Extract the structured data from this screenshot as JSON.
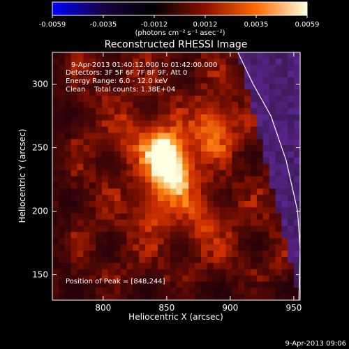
{
  "chart_data": {
    "type": "heatmap",
    "title": "Reconstructed RHESSI Image",
    "xlabel": "Heliocentric X (arcsec)",
    "ylabel": "Heliocentric Y (arcsec)",
    "xlim": [
      760,
      955
    ],
    "ylim": [
      130,
      325
    ],
    "xticks": [
      800,
      850,
      900,
      950
    ],
    "yticks": [
      150,
      200,
      250,
      300
    ],
    "colorbar": {
      "range": [
        -0.0059,
        0.0059
      ],
      "ticks": [
        "-0.0059",
        "-0.0035",
        "-0.0012",
        "0.0012",
        "0.0035",
        "0.0059"
      ],
      "unit_label": "(photons cm⁻² s⁻¹ asec⁻²)",
      "colormap": [
        "#0000ff",
        "#1a0040",
        "#000000",
        "#8a1000",
        "#ff6a00",
        "#ffffe0"
      ]
    },
    "annotations": [
      "9-Apr-2013 01:40:12.000 to 01:42:00.000",
      "Detectors: 3F 5F 6F 7F 8F 9F, Att 0",
      "Energy Range: 6.0 - 12.0 keV",
      "Clean    Total counts: 1.38E+04"
    ],
    "peak_label": "Position of Peak = [848,244]",
    "sources": [
      {
        "x": 848,
        "y": 244,
        "intensity": 1.0
      },
      {
        "x": 858,
        "y": 225,
        "intensity": 0.55
      },
      {
        "x": 886,
        "y": 265,
        "intensity": 0.55
      },
      {
        "x": 840,
        "y": 200,
        "intensity": 0.35
      },
      {
        "x": 880,
        "y": 190,
        "intensity": 0.3
      },
      {
        "x": 820,
        "y": 260,
        "intensity": 0.25
      }
    ],
    "limb": [
      [
        906,
        325
      ],
      [
        918,
        300
      ],
      [
        932,
        275
      ],
      [
        944,
        240
      ],
      [
        953,
        200
      ],
      [
        955,
        170
      ],
      [
        954,
        130
      ]
    ]
  },
  "footer_timestamp": "9-Apr-2013 09:06"
}
